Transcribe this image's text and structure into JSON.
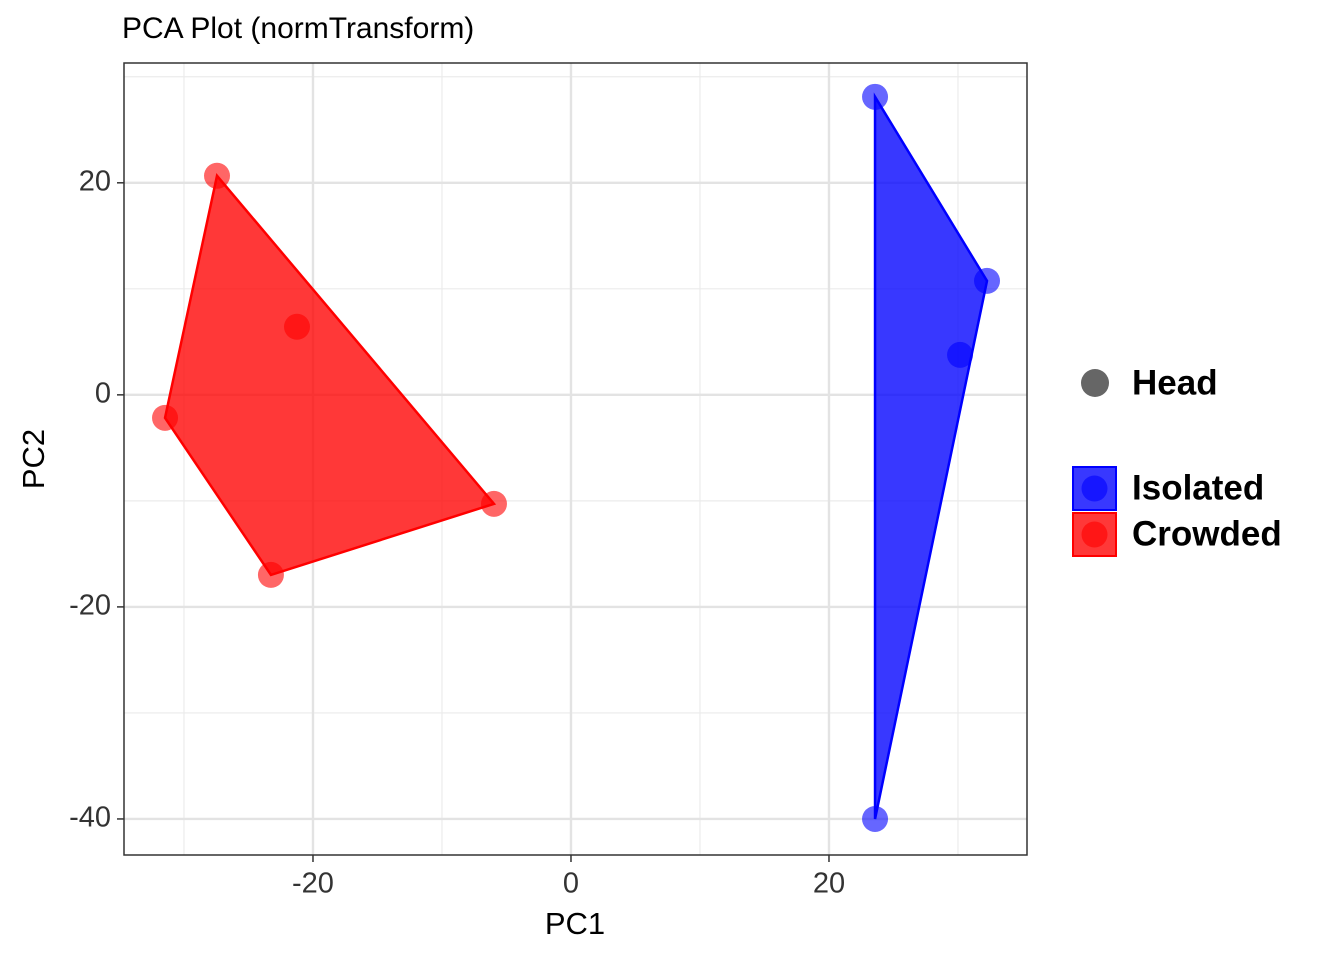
{
  "chart_data": {
    "type": "scatter",
    "title": "PCA Plot (normTransform)",
    "x_label": "PC1",
    "y_label": "PC2",
    "xlim": [
      -34.65,
      35.35
    ],
    "ylim": [
      -43.4,
      31.3
    ],
    "xticks": [
      -20,
      0,
      20
    ],
    "yticks": [
      -40,
      -20,
      0,
      20
    ],
    "xminorticks": [
      -30,
      -10,
      10,
      30
    ],
    "yminorticks": [
      -30,
      -10,
      10,
      30
    ],
    "grid": true,
    "hull": true,
    "shape_legend": "Head",
    "shape_color": "#666666",
    "series": [
      {
        "name": "Isolated",
        "color": "#0000ff",
        "x": [
          23.57,
          32.25,
          30.16,
          23.57
        ],
        "y": [
          28.11,
          10.75,
          3.77,
          -40.0
        ]
      },
      {
        "name": "Crowded",
        "color": "#ff0000",
        "x": [
          -27.44,
          -21.24,
          -31.47,
          -23.26,
          -5.97
        ],
        "y": [
          20.66,
          6.42,
          -2.17,
          -16.98,
          -10.28
        ]
      }
    ]
  }
}
